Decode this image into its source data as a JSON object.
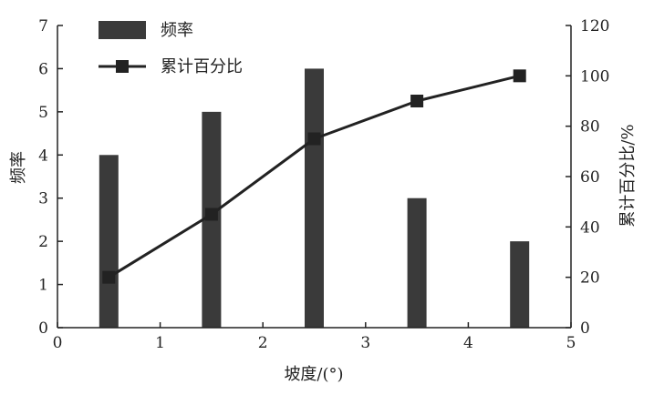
{
  "chart_data": {
    "type": "bar",
    "xlabel": "坡度/(°)",
    "ylabel": "频率",
    "y2label": "累计百分比/%",
    "xlim": [
      0,
      5
    ],
    "ylim": [
      0,
      7
    ],
    "y2lim": [
      0,
      120
    ],
    "x_ticks": [
      "0",
      "1",
      "2",
      "3",
      "4",
      "5"
    ],
    "y_ticks": [
      "0",
      "1",
      "2",
      "3",
      "4",
      "5",
      "6",
      "7"
    ],
    "y2_ticks": [
      "0",
      "20",
      "40",
      "60",
      "80",
      "100",
      "120"
    ],
    "grid": false,
    "legend_position": "top-left",
    "x": [
      0.5,
      1.5,
      2.5,
      3.5,
      4.5
    ],
    "series": [
      {
        "name": "频率",
        "kind": "bar",
        "axis": "left",
        "color": "#3a3a3a",
        "values": [
          4,
          5,
          6,
          3,
          2
        ]
      },
      {
        "name": "累计百分比",
        "kind": "line",
        "marker": "square",
        "axis": "right",
        "color": "#222222",
        "values": [
          20,
          45,
          75,
          90,
          100
        ]
      }
    ]
  }
}
